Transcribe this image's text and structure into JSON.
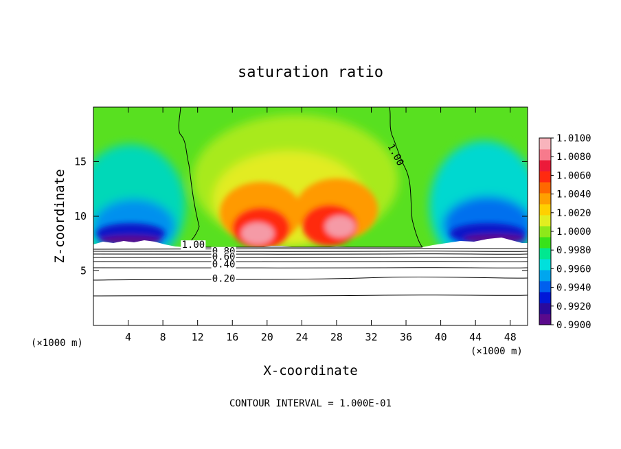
{
  "chart_data": {
    "type": "heatmap",
    "title": "saturation ratio",
    "xlabel": "X-coordinate",
    "ylabel": "Z-coordinate",
    "x_unit_left": "(×1000 m)",
    "x_unit_right": "(×1000 m)",
    "footer": "CONTOUR INTERVAL = 1.000E-01",
    "xlim": [
      0,
      50
    ],
    "ylim": [
      0,
      20
    ],
    "x_ticks": [
      4,
      8,
      12,
      16,
      20,
      24,
      28,
      32,
      36,
      40,
      44,
      48
    ],
    "y_ticks": [
      5,
      10,
      15
    ],
    "colorbar": {
      "range": [
        0.99,
        1.01
      ],
      "labels": [
        "1.0100",
        "1.0080",
        "1.0060",
        "1.0040",
        "1.0020",
        "1.0000",
        "0.9980",
        "0.9960",
        "0.9940",
        "0.9920",
        "0.9900"
      ],
      "colors": [
        "#5a0a8c",
        "#2a0a9c",
        "#0018d8",
        "#0060ee",
        "#00a6ee",
        "#00e0dc",
        "#00e890",
        "#38e21a",
        "#8ee81a",
        "#e2ee20",
        "#ffd000",
        "#ffa000",
        "#ff6800",
        "#ff2a10",
        "#ec1a3a",
        "#f77a8c",
        "#f8b4bc"
      ]
    },
    "contours": [
      {
        "label": "1.00",
        "x": 11.5,
        "y": 7.1
      },
      {
        "label": "0.80",
        "x": 15.0,
        "y": 6.5
      },
      {
        "label": "0.60",
        "x": 15.0,
        "y": 6.0
      },
      {
        "label": "0.40",
        "x": 15.0,
        "y": 5.3
      },
      {
        "label": "0.20",
        "x": 15.0,
        "y": 4.0
      },
      {
        "label": "1.00",
        "x": 34.5,
        "y": 15.5
      }
    ]
  }
}
